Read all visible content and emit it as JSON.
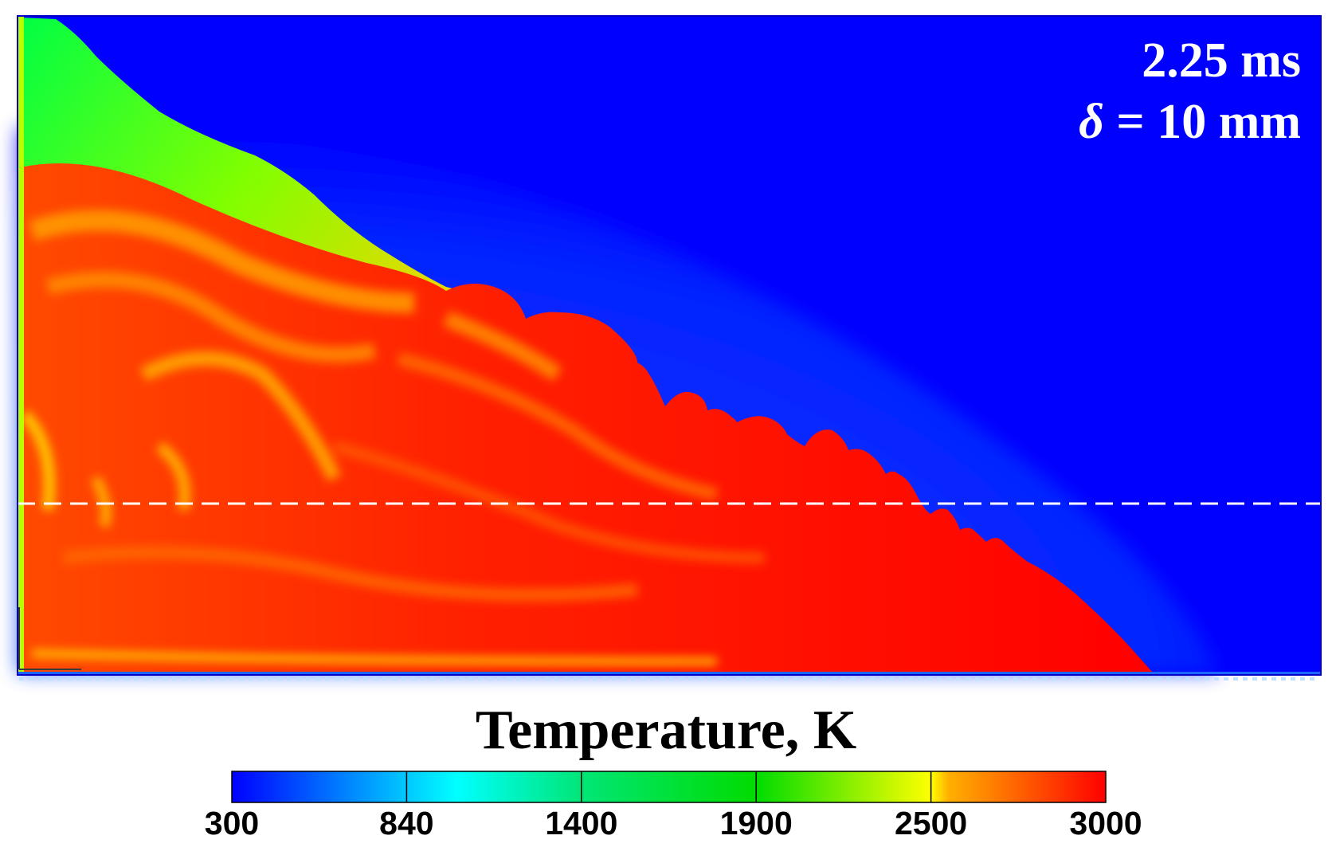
{
  "chart_data": {
    "type": "heatmap",
    "title": "Temperature, K",
    "annotations": {
      "time": "2.25 ms",
      "delta_symbol": "δ",
      "delta_text": " = 10 mm"
    },
    "colorbar": {
      "min": 300,
      "max": 3000,
      "tick_labels": [
        "300",
        "840",
        "1400",
        "1900",
        "2500",
        "3000"
      ],
      "tick_values": [
        300,
        840,
        1400,
        1900,
        2500,
        3000
      ],
      "stops": [
        {
          "value": 300,
          "color": "#0000ff"
        },
        {
          "value": 840,
          "color": "#00c8ff"
        },
        {
          "value": 1000,
          "color": "#00ffff"
        },
        {
          "value": 1400,
          "color": "#00e676"
        },
        {
          "value": 1900,
          "color": "#00dc00"
        },
        {
          "value": 2500,
          "color": "#ffff00"
        },
        {
          "value": 2550,
          "color": "#ffb000"
        },
        {
          "value": 3000,
          "color": "#ff0000"
        }
      ]
    },
    "reference_line": "dashed horizontal",
    "xlabel": "",
    "ylabel": ""
  },
  "colors": {
    "cold": "#0000ff",
    "hot": "#ff0000",
    "annotation": "#ffffff",
    "dashed_line": "#ffffff"
  }
}
